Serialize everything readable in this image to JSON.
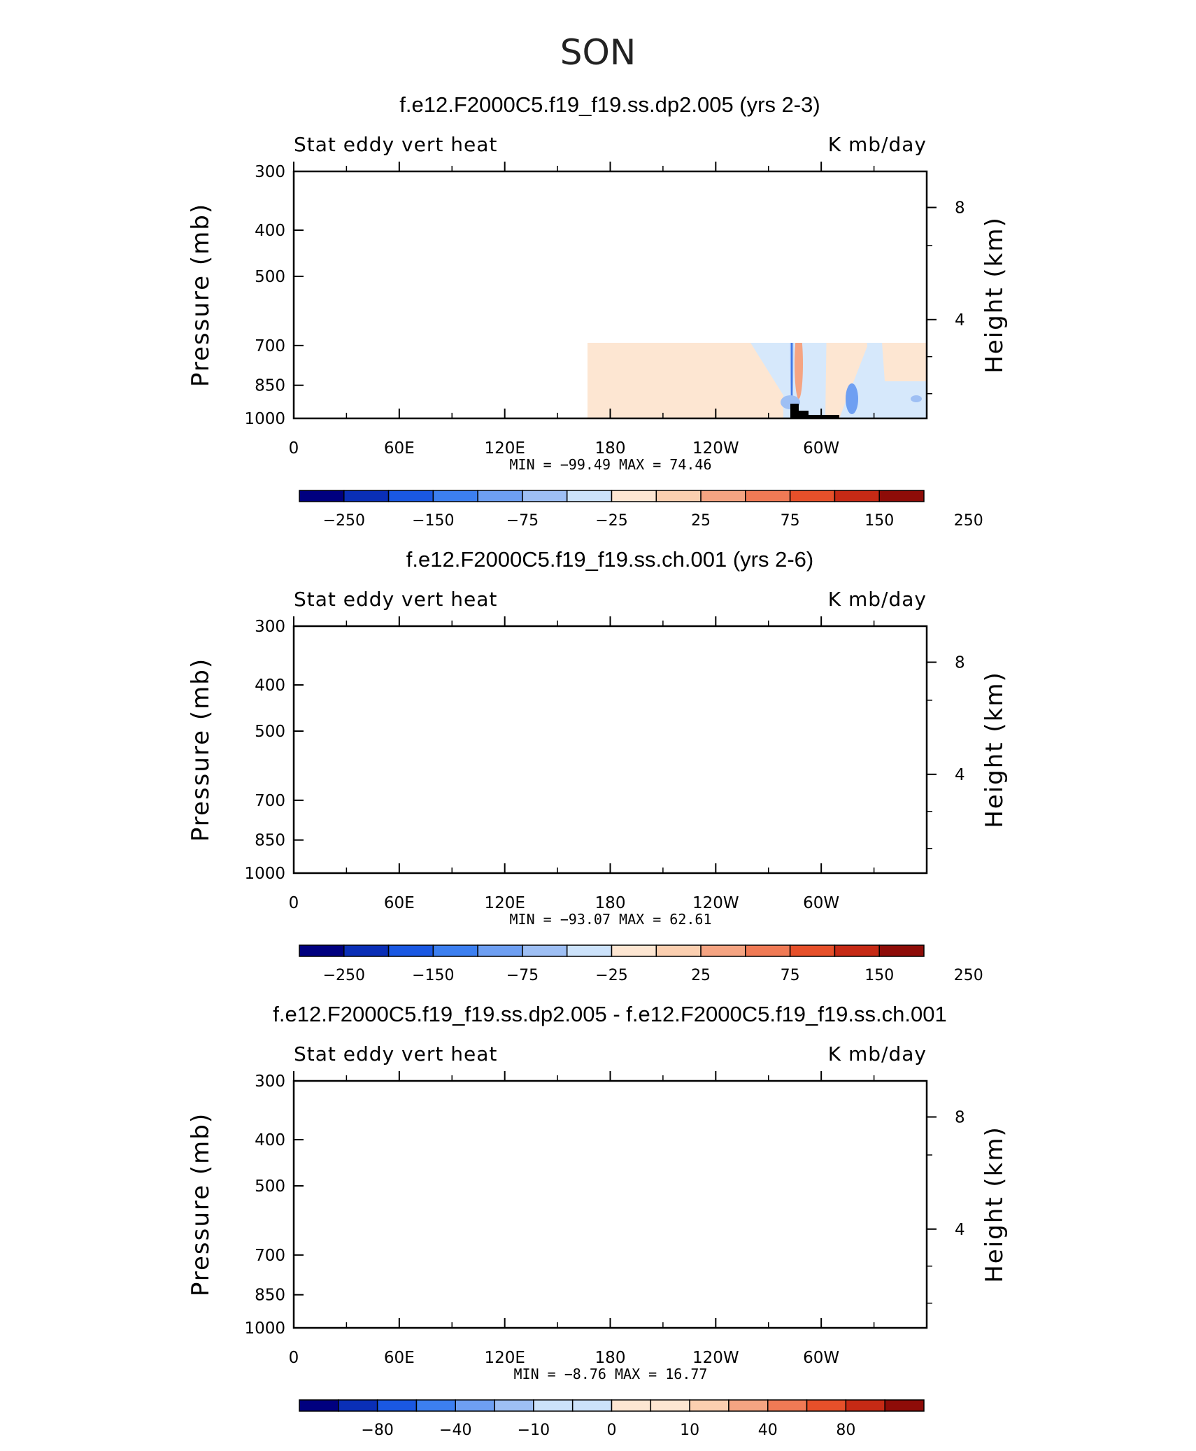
{
  "title": "SON",
  "chart_data": [
    {
      "type": "heatmap",
      "title": "f.e12.F2000C5.f19_f19.ss.dp2.005 (yrs 2-3)",
      "left_label": "Stat eddy vert heat",
      "right_label": "K mb/day",
      "ylabel": "Pressure (mb)",
      "y2label": "Height (km)",
      "x_ticks": [
        "0",
        "60E",
        "120E",
        "180",
        "120W",
        "60W"
      ],
      "y_ticks": [
        "300",
        "400",
        "500",
        "700",
        "850",
        "1000"
      ],
      "y2_ticks": [
        "8",
        "4"
      ],
      "min_label": "MIN = ",
      "min": "-99.49",
      "max_label": "MAX = ",
      "max": "74.46",
      "colorbar_labels": [
        "−250",
        "−150",
        "−75",
        "−25",
        "25",
        "75",
        "150",
        "250"
      ]
    },
    {
      "type": "heatmap",
      "title": "f.e12.F2000C5.f19_f19.ss.ch.001 (yrs 2-6)",
      "left_label": "Stat eddy vert heat",
      "right_label": "K mb/day",
      "ylabel": "Pressure (mb)",
      "y2label": "Height (km)",
      "x_ticks": [
        "0",
        "60E",
        "120E",
        "180",
        "120W",
        "60W"
      ],
      "y_ticks": [
        "300",
        "400",
        "500",
        "700",
        "850",
        "1000"
      ],
      "y2_ticks": [
        "8",
        "4"
      ],
      "min_label": "MIN = ",
      "min": "-93.07",
      "max_label": "MAX = ",
      "max": "62.61",
      "colorbar_labels": [
        "−250",
        "−150",
        "−75",
        "−25",
        "25",
        "75",
        "150",
        "250"
      ]
    },
    {
      "type": "heatmap",
      "title": "f.e12.F2000C5.f19_f19.ss.dp2.005 - f.e12.F2000C5.f19_f19.ss.ch.001",
      "left_label": "Stat eddy vert heat",
      "right_label": "K mb/day",
      "ylabel": "Pressure (mb)",
      "y2label": "Height (km)",
      "x_ticks": [
        "0",
        "60E",
        "120E",
        "180",
        "120W",
        "60W"
      ],
      "y_ticks": [
        "300",
        "400",
        "500",
        "700",
        "850",
        "1000"
      ],
      "y2_ticks": [
        "8",
        "4"
      ],
      "min_label": "MIN = ",
      "min": "-8.76",
      "max_label": "MAX = ",
      "max": "16.77",
      "colorbar_labels": [
        "−80",
        "−40",
        "−10",
        "0",
        "10",
        "40",
        "80"
      ]
    }
  ],
  "colors": {
    "palette": [
      "#00007f",
      "#0a2fb7",
      "#1a58e2",
      "#3c7ff0",
      "#6e9ff2",
      "#9ebff4",
      "#cce2fa",
      "#fde6d2",
      "#fbcfb0",
      "#f5a482",
      "#f07a55",
      "#e6502a",
      "#c62a15",
      "#8e0c08"
    ],
    "light_blue": "#d6e8fb",
    "light_orange": "#fde6d2",
    "topography": "#000000"
  }
}
